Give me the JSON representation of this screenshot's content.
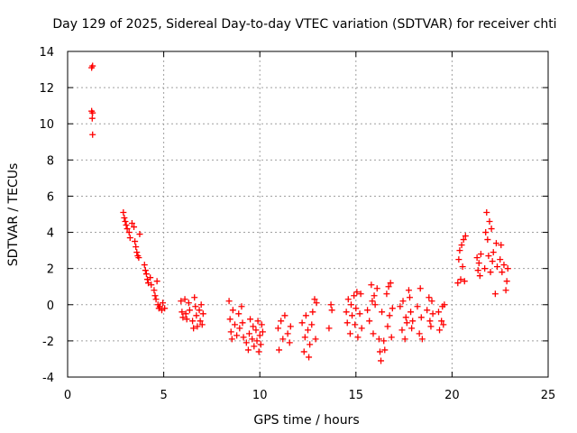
{
  "chart_data": {
    "type": "scatter",
    "title": "Day 129 of 2025, Sidereal Day-to-day VTEC variation (SDTVAR) for receiver chti",
    "xlabel": "GPS time / hours",
    "ylabel": "SDTVAR / TECUs",
    "xlim": [
      0,
      25
    ],
    "ylim": [
      -4,
      14
    ],
    "xticks": [
      0,
      5,
      10,
      15,
      20,
      25
    ],
    "yticks": [
      -4,
      -2,
      0,
      2,
      4,
      6,
      8,
      10,
      12,
      14
    ],
    "xtick_labels": [
      "0",
      "5",
      "10",
      "15",
      "20",
      "25"
    ],
    "ytick_labels": [
      "-4",
      "-2",
      "0",
      "2",
      "4",
      "6",
      "8",
      "10",
      "12",
      "14"
    ],
    "grid": true,
    "marker": "plus",
    "color": "#ff0000",
    "series": [
      {
        "name": "SDTVAR",
        "points": [
          [
            1.25,
            13.1
          ],
          [
            1.3,
            13.2
          ],
          [
            1.25,
            10.7
          ],
          [
            1.3,
            10.6
          ],
          [
            1.28,
            10.3
          ],
          [
            1.3,
            9.4
          ],
          [
            2.9,
            5.1
          ],
          [
            2.95,
            4.8
          ],
          [
            3.0,
            4.6
          ],
          [
            3.05,
            4.4
          ],
          [
            3.1,
            4.2
          ],
          [
            3.2,
            4.0
          ],
          [
            3.25,
            3.7
          ],
          [
            3.35,
            4.5
          ],
          [
            3.45,
            4.3
          ],
          [
            3.5,
            3.5
          ],
          [
            3.55,
            3.2
          ],
          [
            3.6,
            2.9
          ],
          [
            3.65,
            2.7
          ],
          [
            3.7,
            2.6
          ],
          [
            3.75,
            3.9
          ],
          [
            4.0,
            2.2
          ],
          [
            4.05,
            1.9
          ],
          [
            4.1,
            1.7
          ],
          [
            4.15,
            1.4
          ],
          [
            4.2,
            1.2
          ],
          [
            4.3,
            1.5
          ],
          [
            4.35,
            1.1
          ],
          [
            4.5,
            0.8
          ],
          [
            4.55,
            0.5
          ],
          [
            4.6,
            0.3
          ],
          [
            4.65,
            1.3
          ],
          [
            4.7,
            0.0
          ],
          [
            4.75,
            -0.2
          ],
          [
            4.8,
            -0.1
          ],
          [
            4.9,
            -0.3
          ],
          [
            4.95,
            0.1
          ],
          [
            5.05,
            -0.2
          ],
          [
            5.9,
            0.2
          ],
          [
            5.95,
            -0.4
          ],
          [
            6.0,
            -0.7
          ],
          [
            6.1,
            0.3
          ],
          [
            6.15,
            -0.5
          ],
          [
            6.2,
            -0.8
          ],
          [
            6.3,
            0.1
          ],
          [
            6.35,
            -0.3
          ],
          [
            6.5,
            -0.9
          ],
          [
            6.55,
            -1.3
          ],
          [
            6.6,
            0.4
          ],
          [
            6.65,
            -0.1
          ],
          [
            6.7,
            -0.6
          ],
          [
            6.75,
            -1.2
          ],
          [
            6.85,
            -0.3
          ],
          [
            6.9,
            -0.9
          ],
          [
            6.95,
            0.0
          ],
          [
            7.0,
            -1.1
          ],
          [
            7.05,
            -0.5
          ],
          [
            8.4,
            0.2
          ],
          [
            8.45,
            -0.8
          ],
          [
            8.5,
            -1.5
          ],
          [
            8.55,
            -1.9
          ],
          [
            8.6,
            -0.3
          ],
          [
            8.7,
            -1.1
          ],
          [
            8.8,
            -1.7
          ],
          [
            8.9,
            -0.5
          ],
          [
            8.95,
            -1.3
          ],
          [
            9.05,
            -0.1
          ],
          [
            9.1,
            -1.0
          ],
          [
            9.15,
            -1.8
          ],
          [
            9.3,
            -2.1
          ],
          [
            9.4,
            -2.5
          ],
          [
            9.45,
            -1.6
          ],
          [
            9.5,
            -0.8
          ],
          [
            9.6,
            -1.9
          ],
          [
            9.65,
            -1.2
          ],
          [
            9.7,
            -2.3
          ],
          [
            9.8,
            -1.4
          ],
          [
            9.85,
            -2.0
          ],
          [
            9.9,
            -0.9
          ],
          [
            9.95,
            -2.6
          ],
          [
            10.0,
            -1.7
          ],
          [
            10.05,
            -2.2
          ],
          [
            10.1,
            -1.1
          ],
          [
            10.15,
            -1.5
          ],
          [
            10.95,
            -1.3
          ],
          [
            11.0,
            -2.5
          ],
          [
            11.1,
            -0.9
          ],
          [
            11.2,
            -1.9
          ],
          [
            11.3,
            -0.6
          ],
          [
            11.45,
            -1.6
          ],
          [
            11.55,
            -2.1
          ],
          [
            11.6,
            -1.2
          ],
          [
            12.2,
            -1.0
          ],
          [
            12.3,
            -2.6
          ],
          [
            12.35,
            -1.8
          ],
          [
            12.4,
            -0.6
          ],
          [
            12.5,
            -1.4
          ],
          [
            12.55,
            -2.9
          ],
          [
            12.6,
            -2.2
          ],
          [
            12.7,
            -1.1
          ],
          [
            12.75,
            -0.4
          ],
          [
            12.85,
            0.3
          ],
          [
            12.9,
            -1.9
          ],
          [
            12.95,
            0.1
          ],
          [
            13.6,
            -1.3
          ],
          [
            13.7,
            0.0
          ],
          [
            13.75,
            -0.3
          ],
          [
            14.5,
            -0.4
          ],
          [
            14.55,
            -1.0
          ],
          [
            14.6,
            0.3
          ],
          [
            14.7,
            -1.6
          ],
          [
            14.75,
            0.0
          ],
          [
            14.8,
            -0.6
          ],
          [
            14.9,
            0.5
          ],
          [
            14.95,
            -1.1
          ],
          [
            15.0,
            -0.2
          ],
          [
            15.05,
            0.7
          ],
          [
            15.1,
            -1.8
          ],
          [
            15.2,
            -0.5
          ],
          [
            15.25,
            0.6
          ],
          [
            15.3,
            -1.3
          ],
          [
            15.6,
            -0.3
          ],
          [
            15.7,
            -0.9
          ],
          [
            15.8,
            1.1
          ],
          [
            15.85,
            0.2
          ],
          [
            15.9,
            -1.6
          ],
          [
            15.95,
            0.5
          ],
          [
            16.0,
            0.0
          ],
          [
            16.1,
            0.9
          ],
          [
            16.2,
            -1.9
          ],
          [
            16.25,
            -2.6
          ],
          [
            16.3,
            -3.1
          ],
          [
            16.35,
            -0.4
          ],
          [
            16.45,
            -2.0
          ],
          [
            16.5,
            -2.5
          ],
          [
            16.6,
            0.6
          ],
          [
            16.65,
            -1.2
          ],
          [
            16.7,
            1.0
          ],
          [
            16.75,
            -0.6
          ],
          [
            16.8,
            1.2
          ],
          [
            16.85,
            -1.8
          ],
          [
            16.9,
            -0.2
          ],
          [
            17.3,
            -0.1
          ],
          [
            17.4,
            -1.4
          ],
          [
            17.45,
            0.2
          ],
          [
            17.55,
            -1.9
          ],
          [
            17.6,
            -0.7
          ],
          [
            17.65,
            -1.0
          ],
          [
            17.75,
            0.8
          ],
          [
            17.8,
            0.4
          ],
          [
            17.85,
            -0.4
          ],
          [
            17.9,
            -1.3
          ],
          [
            17.95,
            -0.9
          ],
          [
            18.2,
            -0.1
          ],
          [
            18.3,
            -1.6
          ],
          [
            18.35,
            0.9
          ],
          [
            18.4,
            -0.7
          ],
          [
            18.45,
            -1.9
          ],
          [
            18.7,
            -0.3
          ],
          [
            18.8,
            0.4
          ],
          [
            18.85,
            -0.9
          ],
          [
            18.9,
            -1.2
          ],
          [
            18.95,
            0.2
          ],
          [
            19.0,
            -0.5
          ],
          [
            19.3,
            -0.4
          ],
          [
            19.35,
            -1.4
          ],
          [
            19.45,
            -0.9
          ],
          [
            19.5,
            -0.1
          ],
          [
            19.55,
            -1.1
          ],
          [
            19.6,
            0.0
          ],
          [
            20.3,
            1.2
          ],
          [
            20.35,
            2.5
          ],
          [
            20.4,
            3.0
          ],
          [
            20.45,
            1.4
          ],
          [
            20.5,
            3.3
          ],
          [
            20.55,
            2.1
          ],
          [
            20.6,
            3.6
          ],
          [
            20.65,
            1.3
          ],
          [
            20.7,
            3.8
          ],
          [
            21.3,
            2.6
          ],
          [
            21.35,
            1.9
          ],
          [
            21.4,
            2.3
          ],
          [
            21.45,
            1.6
          ],
          [
            21.5,
            2.8
          ],
          [
            21.7,
            2.0
          ],
          [
            21.75,
            4.0
          ],
          [
            21.8,
            5.1
          ],
          [
            21.85,
            3.6
          ],
          [
            21.9,
            2.7
          ],
          [
            21.95,
            4.6
          ],
          [
            22.0,
            1.8
          ],
          [
            22.05,
            4.2
          ],
          [
            22.1,
            2.4
          ],
          [
            22.15,
            2.9
          ],
          [
            22.25,
            0.6
          ],
          [
            22.3,
            3.4
          ],
          [
            22.35,
            2.1
          ],
          [
            22.5,
            2.5
          ],
          [
            22.55,
            3.3
          ],
          [
            22.6,
            1.8
          ],
          [
            22.7,
            2.2
          ],
          [
            22.8,
            0.8
          ],
          [
            22.85,
            1.3
          ],
          [
            22.9,
            2.0
          ]
        ]
      }
    ]
  }
}
